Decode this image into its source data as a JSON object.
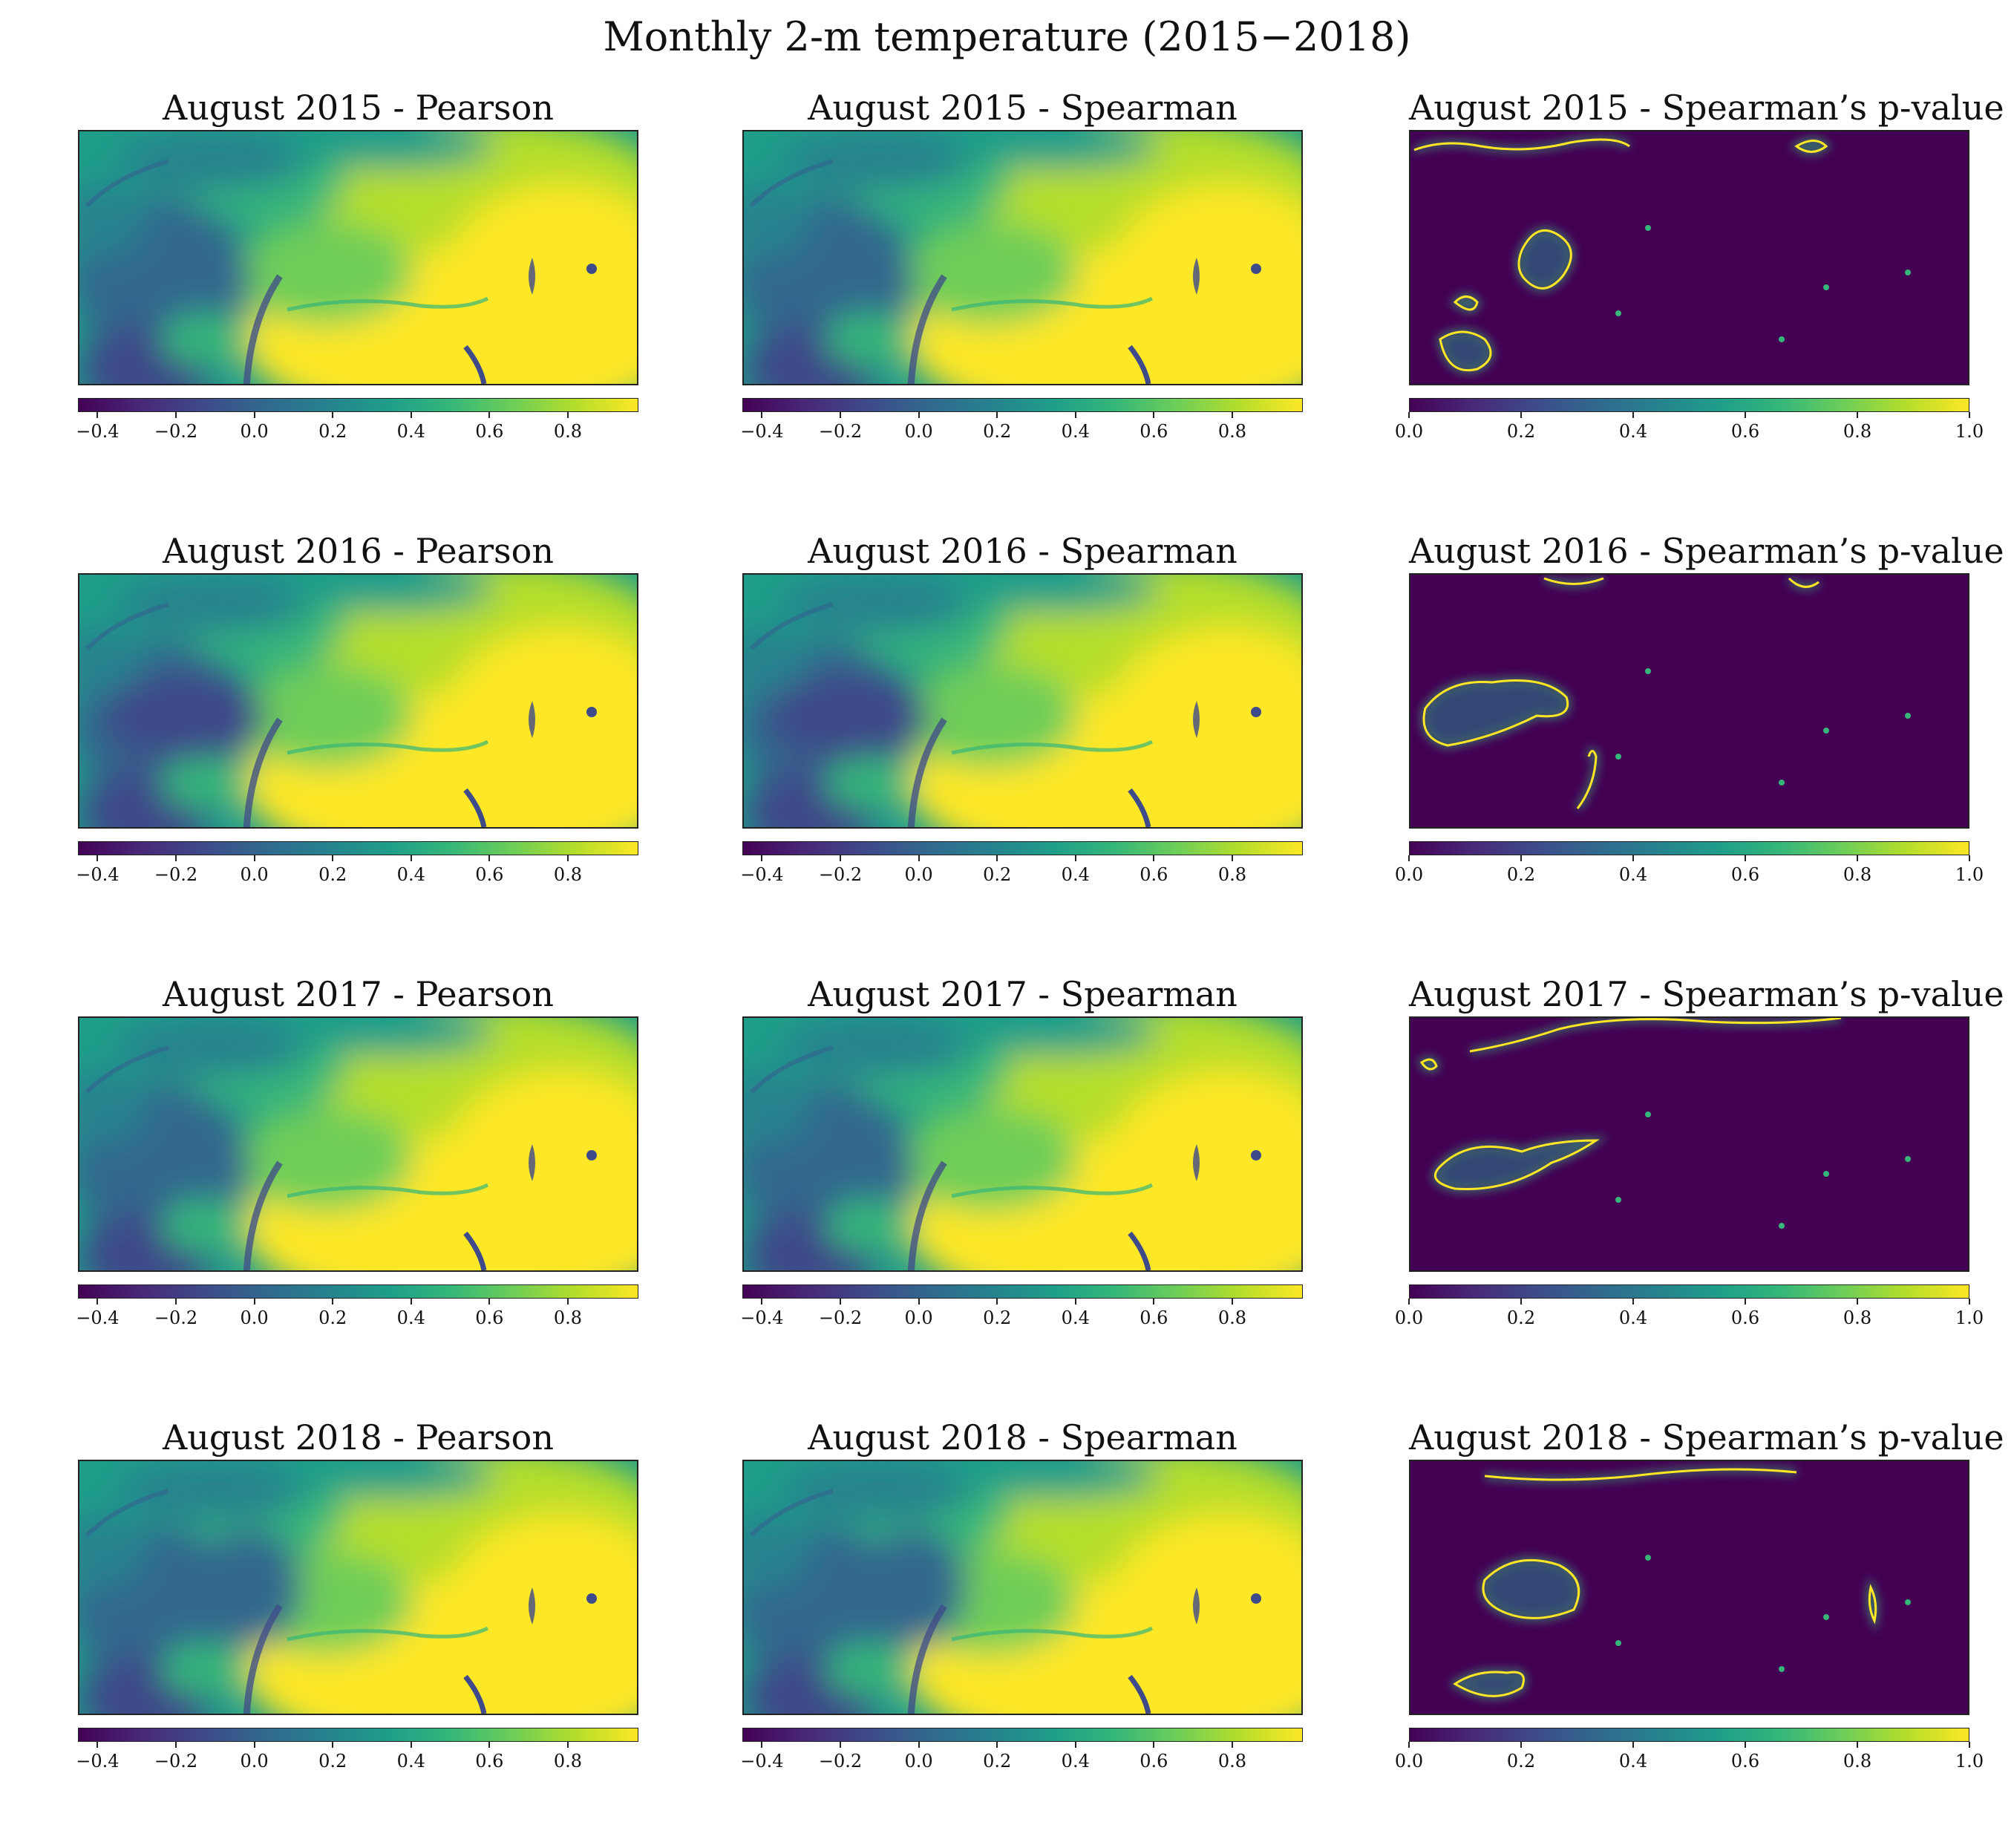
{
  "figure_title": "Monthly 2-m temperature (2015−2018)",
  "chart_data": [
    {
      "type": "heatmap",
      "title": "August 2015 - Pearson",
      "colormap": "viridis",
      "colorbar_range": [
        -0.45,
        0.98
      ],
      "colorbar_ticks": [
        -0.4,
        -0.2,
        0.0,
        0.2,
        0.4,
        0.6,
        0.8
      ],
      "colorbar_tick_labels": [
        "−0.4",
        "−0.2",
        "0.0",
        "0.2",
        "0.4",
        "0.6",
        "0.8"
      ]
    },
    {
      "type": "heatmap",
      "title": "August 2015 - Spearman",
      "colormap": "viridis",
      "colorbar_range": [
        -0.45,
        0.98
      ],
      "colorbar_ticks": [
        -0.4,
        -0.2,
        0.0,
        0.2,
        0.4,
        0.6,
        0.8
      ],
      "colorbar_tick_labels": [
        "−0.4",
        "−0.2",
        "0.0",
        "0.2",
        "0.4",
        "0.6",
        "0.8"
      ]
    },
    {
      "type": "heatmap",
      "title": "August 2015 - Spearman’s p-value",
      "colormap": "viridis",
      "colorbar_range": [
        0.0,
        1.0
      ],
      "colorbar_ticks": [
        0.0,
        0.2,
        0.4,
        0.6,
        0.8,
        1.0
      ],
      "colorbar_tick_labels": [
        "0.0",
        "0.2",
        "0.4",
        "0.6",
        "0.8",
        "1.0"
      ]
    },
    {
      "type": "heatmap",
      "title": "August 2016 - Pearson",
      "colormap": "viridis",
      "colorbar_range": [
        -0.45,
        0.98
      ],
      "colorbar_ticks": [
        -0.4,
        -0.2,
        0.0,
        0.2,
        0.4,
        0.6,
        0.8
      ],
      "colorbar_tick_labels": [
        "−0.4",
        "−0.2",
        "0.0",
        "0.2",
        "0.4",
        "0.6",
        "0.8"
      ]
    },
    {
      "type": "heatmap",
      "title": "August 2016 - Spearman",
      "colormap": "viridis",
      "colorbar_range": [
        -0.45,
        0.98
      ],
      "colorbar_ticks": [
        -0.4,
        -0.2,
        0.0,
        0.2,
        0.4,
        0.6,
        0.8
      ],
      "colorbar_tick_labels": [
        "−0.4",
        "−0.2",
        "0.0",
        "0.2",
        "0.4",
        "0.6",
        "0.8"
      ]
    },
    {
      "type": "heatmap",
      "title": "August 2016 - Spearman’s p-value",
      "colormap": "viridis",
      "colorbar_range": [
        0.0,
        1.0
      ],
      "colorbar_ticks": [
        0.0,
        0.2,
        0.4,
        0.6,
        0.8,
        1.0
      ],
      "colorbar_tick_labels": [
        "0.0",
        "0.2",
        "0.4",
        "0.6",
        "0.8",
        "1.0"
      ]
    },
    {
      "type": "heatmap",
      "title": "August 2017 - Pearson",
      "colormap": "viridis",
      "colorbar_range": [
        -0.45,
        0.98
      ],
      "colorbar_ticks": [
        -0.4,
        -0.2,
        0.0,
        0.2,
        0.4,
        0.6,
        0.8
      ],
      "colorbar_tick_labels": [
        "−0.4",
        "−0.2",
        "0.0",
        "0.2",
        "0.4",
        "0.6",
        "0.8"
      ]
    },
    {
      "type": "heatmap",
      "title": "August 2017 - Spearman",
      "colormap": "viridis",
      "colorbar_range": [
        -0.45,
        0.98
      ],
      "colorbar_ticks": [
        -0.4,
        -0.2,
        0.0,
        0.2,
        0.4,
        0.6,
        0.8
      ],
      "colorbar_tick_labels": [
        "−0.4",
        "−0.2",
        "0.0",
        "0.2",
        "0.4",
        "0.6",
        "0.8"
      ]
    },
    {
      "type": "heatmap",
      "title": "August 2017 - Spearman’s p-value",
      "colormap": "viridis",
      "colorbar_range": [
        0.0,
        1.0
      ],
      "colorbar_ticks": [
        0.0,
        0.2,
        0.4,
        0.6,
        0.8,
        1.0
      ],
      "colorbar_tick_labels": [
        "0.0",
        "0.2",
        "0.4",
        "0.6",
        "0.8",
        "1.0"
      ]
    },
    {
      "type": "heatmap",
      "title": "August 2018 - Pearson",
      "colormap": "viridis",
      "colorbar_range": [
        -0.45,
        0.98
      ],
      "colorbar_ticks": [
        -0.4,
        -0.2,
        0.0,
        0.2,
        0.4,
        0.6,
        0.8
      ],
      "colorbar_tick_labels": [
        "−0.4",
        "−0.2",
        "0.0",
        "0.2",
        "0.4",
        "0.6",
        "0.8"
      ]
    },
    {
      "type": "heatmap",
      "title": "August 2018 - Spearman",
      "colormap": "viridis",
      "colorbar_range": [
        -0.45,
        0.98
      ],
      "colorbar_ticks": [
        -0.4,
        -0.2,
        0.0,
        0.2,
        0.4,
        0.6,
        0.8
      ],
      "colorbar_tick_labels": [
        "−0.4",
        "−0.2",
        "0.0",
        "0.2",
        "0.4",
        "0.6",
        "0.8"
      ]
    },
    {
      "type": "heatmap",
      "title": "August 2018 - Spearman’s p-value",
      "colormap": "viridis",
      "colorbar_range": [
        0.0,
        1.0
      ],
      "colorbar_ticks": [
        0.0,
        0.2,
        0.4,
        0.6,
        0.8,
        1.0
      ],
      "colorbar_tick_labels": [
        "0.0",
        "0.2",
        "0.4",
        "0.6",
        "0.8",
        "1.0"
      ]
    }
  ],
  "colormap_stops": [
    "#440154",
    "#482878",
    "#3e4a89",
    "#31688e",
    "#26828e",
    "#1f9e89",
    "#35b779",
    "#6ece58",
    "#b5de2b",
    "#fde725"
  ]
}
